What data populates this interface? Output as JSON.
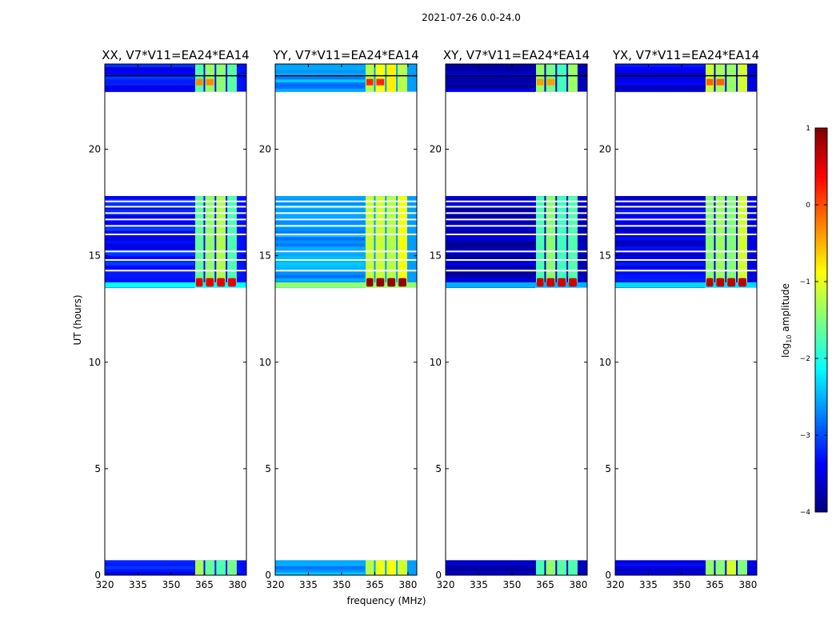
{
  "chart_data": {
    "type": "heatmap",
    "suptitle": "2021-07-26 0.0-24.0",
    "xlabel": "frequency (MHz)",
    "ylabel": "UT (hours)",
    "xlim": [
      320,
      384
    ],
    "ylim": [
      0,
      24
    ],
    "xticks": [
      320,
      335,
      350,
      365,
      380
    ],
    "yticks": [
      0,
      5,
      10,
      15,
      20
    ],
    "data_intervals_ut": [
      [
        0.0,
        0.7
      ],
      [
        13.5,
        17.8
      ],
      [
        22.7,
        24.0
      ]
    ],
    "band_edges_mhz": [
      360.5,
      365.0,
      370.0,
      375.0,
      380.0
    ],
    "colorbar": {
      "label": "log10 amplitude",
      "label_main": "log",
      "label_sub": "10",
      "label_rest": " amplitude",
      "range": [
        -4,
        1
      ],
      "ticks": [
        "1",
        "0",
        "−1",
        "−2",
        "−3",
        "−4"
      ],
      "colors": [
        "#00007f",
        "#0000ff",
        "#007fff",
        "#00ffff",
        "#7fff7f",
        "#ffff00",
        "#ff7f00",
        "#ff0000",
        "#7f0000"
      ]
    },
    "panels": [
      {
        "title": "XX, V7*V11=EA24*EA14",
        "background_level": -3.3,
        "band_level": -1.5,
        "peak_level": 0.5
      },
      {
        "title": "YY, V7*V11=EA24*EA14",
        "background_level": -2.6,
        "band_level": -1.0,
        "peak_level": 0.9
      },
      {
        "title": "XY, V7*V11=EA24*EA14",
        "background_level": -3.7,
        "band_level": -1.6,
        "peak_level": 0.6
      },
      {
        "title": "YX, V7*V11=EA24*EA14",
        "background_level": -3.5,
        "band_level": -1.3,
        "peak_level": 0.7
      }
    ]
  }
}
